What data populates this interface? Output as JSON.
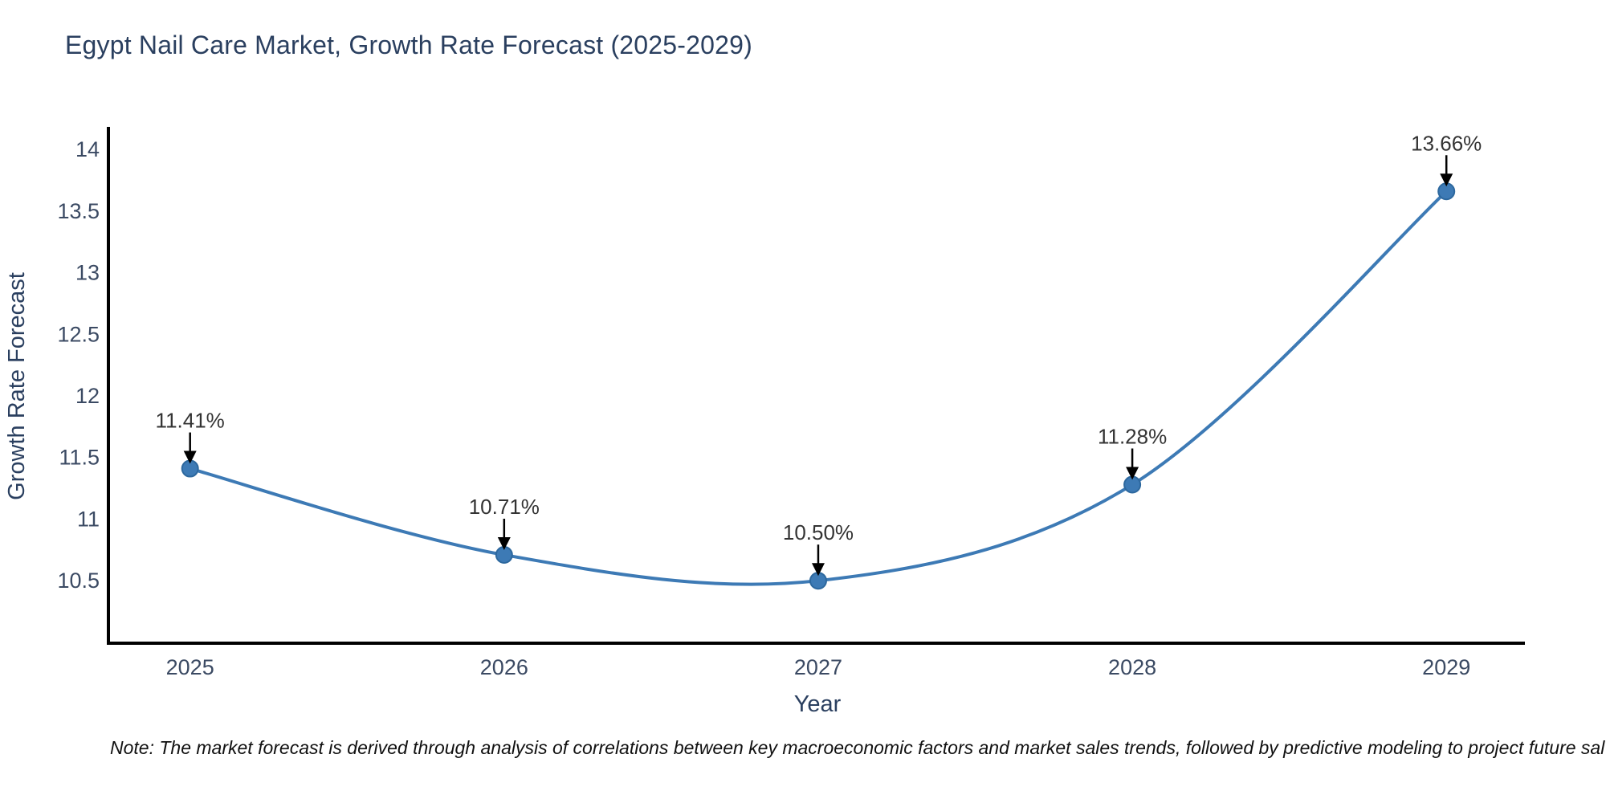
{
  "chart_data": {
    "type": "line",
    "title": "Egypt Nail Care Market, Growth Rate Forecast (2025-2029)",
    "xlabel": "Year",
    "ylabel": "Growth Rate Forecast",
    "x": [
      2025,
      2026,
      2027,
      2028,
      2029
    ],
    "values": [
      11.41,
      10.71,
      10.5,
      11.28,
      13.66
    ],
    "point_labels": [
      "11.41%",
      "10.71%",
      "10.50%",
      "11.28%",
      "13.66%"
    ],
    "x_tick_labels": [
      "2025",
      "2026",
      "2027",
      "2028",
      "2029"
    ],
    "y_ticks": [
      10.5,
      11,
      11.5,
      12,
      12.5,
      13,
      13.5,
      14
    ],
    "xlim": [
      2024.74,
      2029.25
    ],
    "ylim": [
      9.98,
      14.17
    ],
    "line_shape": "spline",
    "grid": false,
    "legend": "none",
    "colors": {
      "line": "#3d7ab5",
      "marker_fill": "#3d7ab5",
      "marker_edge": "#2d689e",
      "axis": "#000000",
      "arrow": "#000000",
      "title_text": "#2a3f5f",
      "tick_text": "#3b4a63",
      "annotation_text": "#333333"
    }
  },
  "note": {
    "text": "Note: The market forecast is derived through analysis of correlations between key macroeconomic factors and market sales trends, followed by predictive modeling to project future sal"
  }
}
